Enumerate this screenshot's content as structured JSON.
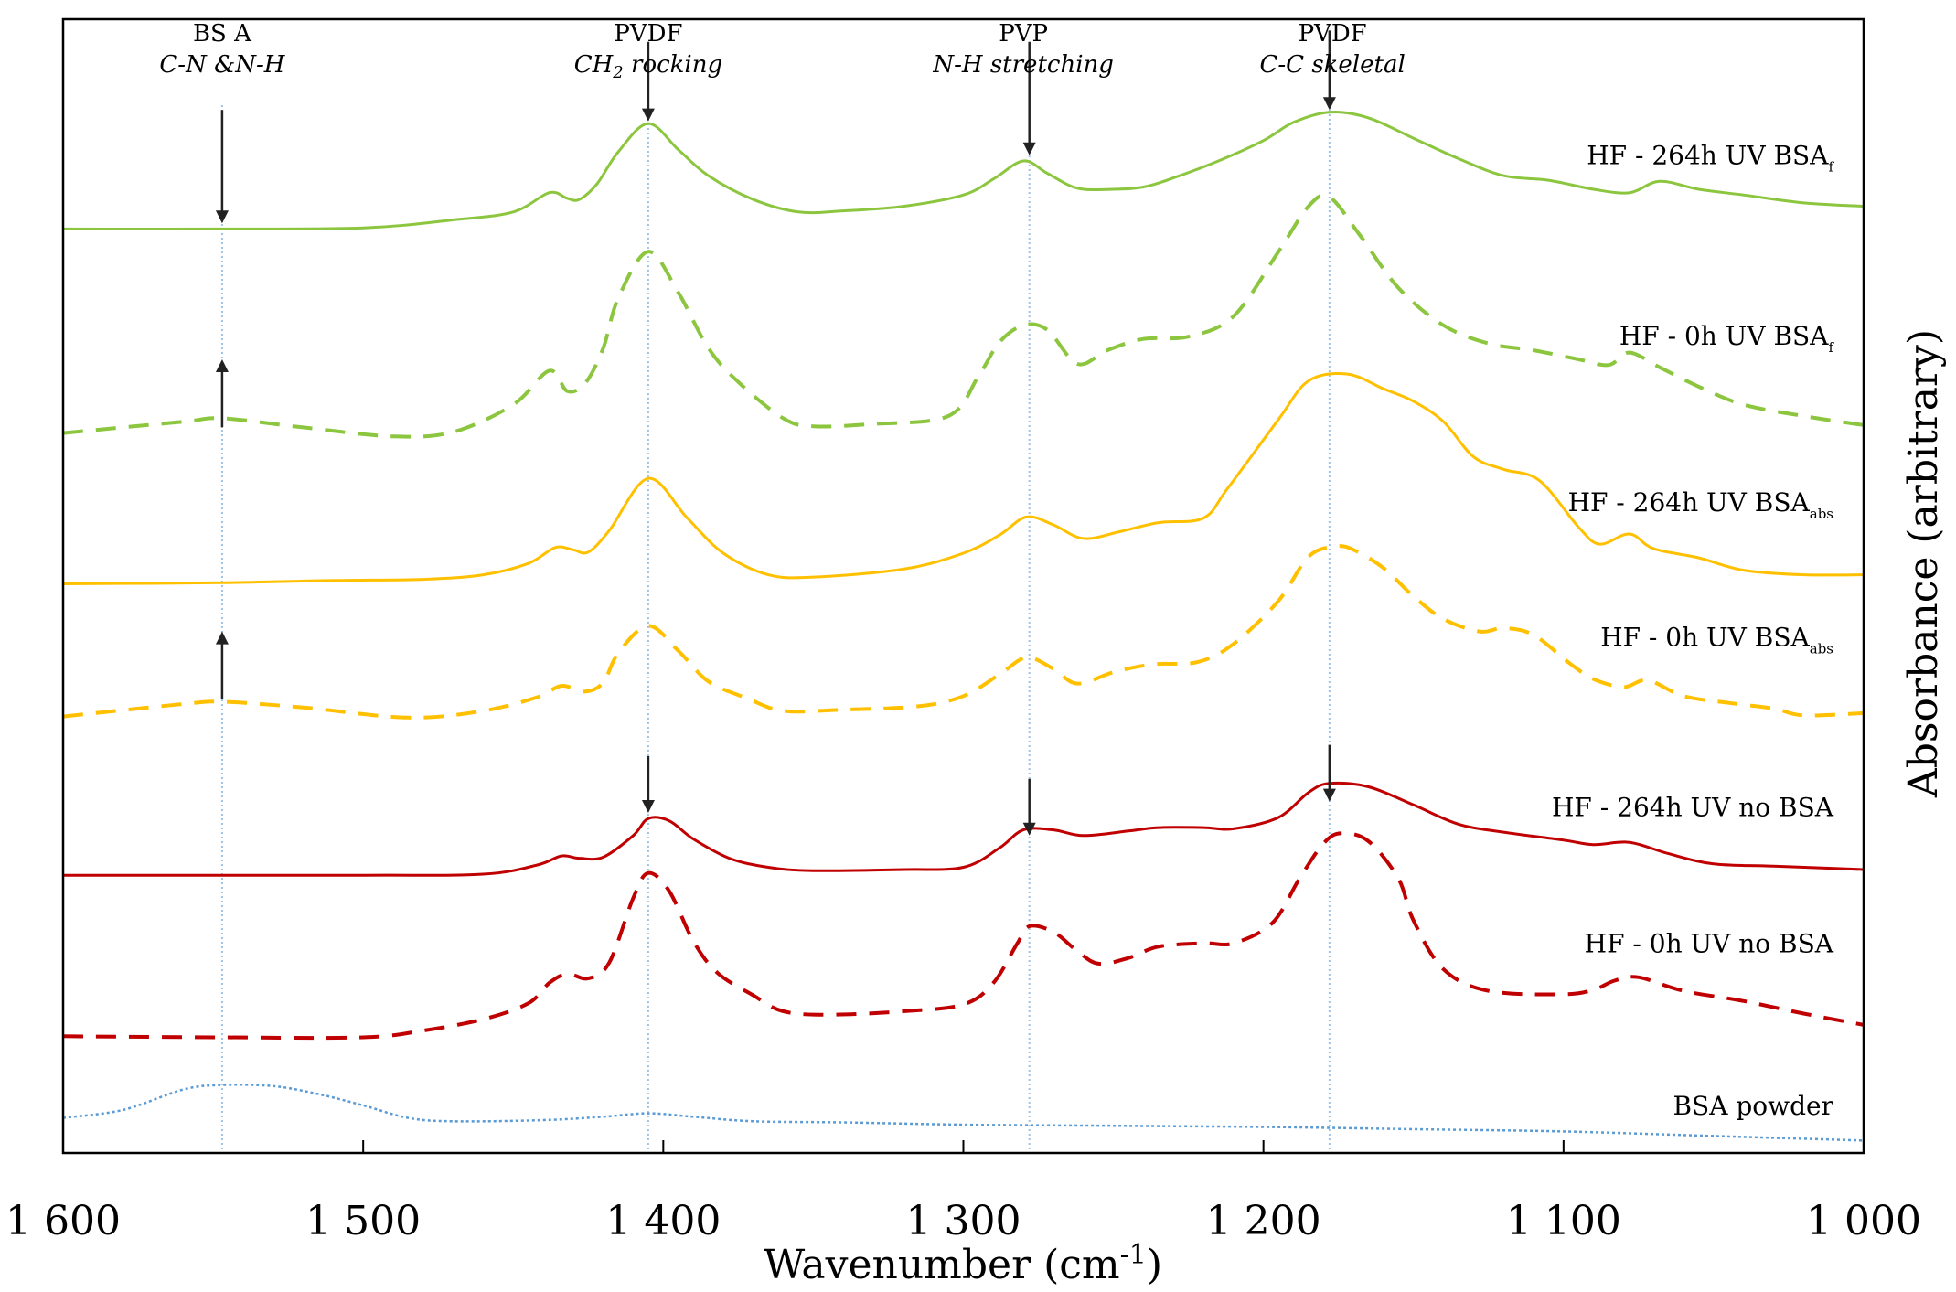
{
  "chart_data": {
    "type": "line",
    "title": "",
    "xlabel": "Wavenumber (cm",
    "xlabel_sup": "-1",
    "xlabel_close": ")",
    "ylabel": "Absorbance (arbitrary)",
    "xlim": [
      1600,
      1000
    ],
    "ylim": [
      0,
      100
    ],
    "x_reversed": true,
    "xticks": [
      {
        "value": 1600,
        "label": "1 600"
      },
      {
        "value": 1500,
        "label": "1 500"
      },
      {
        "value": 1400,
        "label": "1 400"
      },
      {
        "value": 1300,
        "label": "1 300"
      },
      {
        "value": 1200,
        "label": "1 200"
      },
      {
        "value": 1100,
        "label": "1 100"
      },
      {
        "value": 1000,
        "label": "1 000"
      }
    ],
    "reference_lines": [
      1547,
      1405,
      1278,
      1178
    ],
    "annotations": [
      {
        "x": 1547,
        "lines": [
          {
            "text": "BS A",
            "italic": false
          },
          {
            "text": "C-N &N-H",
            "italic": true
          }
        ]
      },
      {
        "x": 1405,
        "lines": [
          {
            "text": "PVDF",
            "italic": false
          },
          {
            "text": "CH",
            "sub": "2",
            "rest": " rocking",
            "italic": true
          }
        ]
      },
      {
        "x": 1280,
        "lines": [
          {
            "text": "PVP",
            "italic": false
          },
          {
            "text": "N-H stretching",
            "italic": true
          }
        ]
      },
      {
        "x": 1177,
        "lines": [
          {
            "text": "PVDF",
            "italic": false
          },
          {
            "text": "C-C skeletal",
            "italic": true
          }
        ]
      }
    ],
    "arrows": [
      {
        "x": 1547,
        "y_from": 92,
        "y_to": 82,
        "direction": "down"
      },
      {
        "x": 1405,
        "y_from": 98,
        "y_to": 91,
        "direction": "down"
      },
      {
        "x": 1278,
        "y_from": 98,
        "y_to": 88,
        "direction": "down"
      },
      {
        "x": 1178,
        "y_from": 99,
        "y_to": 92,
        "direction": "down"
      },
      {
        "x": 1547,
        "y_from": 64,
        "y_to": 70,
        "direction": "up"
      },
      {
        "x": 1547,
        "y_from": 40,
        "y_to": 46,
        "direction": "up"
      },
      {
        "x": 1405,
        "y_from": 35,
        "y_to": 30,
        "direction": "down"
      },
      {
        "x": 1278,
        "y_from": 33,
        "y_to": 28,
        "direction": "down"
      },
      {
        "x": 1178,
        "y_from": 36,
        "y_to": 31,
        "direction": "down"
      }
    ],
    "series": [
      {
        "name": "HF - 264h UV BSA",
        "sub": "f",
        "color": "#8CC63F",
        "dash": "solid",
        "x": [
          1600,
          1550,
          1500,
          1470,
          1450,
          1438,
          1432,
          1428,
          1422,
          1415,
          1405,
          1395,
          1385,
          1370,
          1355,
          1340,
          1320,
          1300,
          1290,
          1280,
          1272,
          1262,
          1250,
          1240,
          1230,
          1215,
          1200,
          1190,
          1178,
          1165,
          1150,
          1135,
          1120,
          1105,
          1090,
          1078,
          1068,
          1055,
          1040,
          1020,
          1000
        ],
        "y": [
          81.5,
          81.5,
          81.6,
          82.3,
          83,
          84.7,
          84.2,
          84.1,
          85.5,
          88.3,
          90.8,
          88.5,
          86.2,
          84.1,
          83,
          83.1,
          83.5,
          84.5,
          85.9,
          87.5,
          86.4,
          85.1,
          85,
          85.2,
          86,
          87.5,
          89.3,
          90.9,
          91.8,
          91.3,
          89.5,
          87.7,
          86.2,
          85.8,
          85,
          84.7,
          85.7,
          85,
          84.5,
          83.8,
          83.5
        ]
      },
      {
        "name": "HF - 0h UV BSA",
        "sub": "f",
        "color": "#8CC63F",
        "dash": "dashed",
        "x": [
          1600,
          1560,
          1547,
          1520,
          1490,
          1470,
          1450,
          1438,
          1432,
          1426,
          1420,
          1415,
          1405,
          1395,
          1385,
          1375,
          1360,
          1350,
          1330,
          1305,
          1295,
          1288,
          1280,
          1272,
          1262,
          1252,
          1240,
          1225,
          1210,
          1195,
          1185,
          1178,
          1168,
          1155,
          1140,
          1125,
          1110,
          1095,
          1085,
          1078,
          1068,
          1055,
          1040,
          1020,
          1000
        ],
        "y": [
          63.5,
          64.5,
          64.8,
          64,
          63.2,
          63.6,
          66,
          69,
          67.2,
          67.9,
          71,
          75.4,
          79.5,
          75.9,
          71,
          68,
          64.8,
          64.1,
          64.3,
          65,
          68.5,
          71.5,
          73,
          72.6,
          69.6,
          70.8,
          71.8,
          72,
          73.8,
          79.5,
          83.5,
          84.3,
          81,
          76.3,
          73,
          71.4,
          70.8,
          70,
          69.5,
          70.6,
          69.3,
          67.6,
          66,
          65,
          64.2
        ]
      },
      {
        "name": "HF - 264h UV BSA",
        "sub": "abs",
        "color": "#FFC000",
        "dash": "solid",
        "x": [
          1600,
          1547,
          1510,
          1480,
          1460,
          1445,
          1436,
          1430,
          1425,
          1418,
          1405,
          1392,
          1380,
          1365,
          1350,
          1320,
          1300,
          1288,
          1279,
          1270,
          1260,
          1248,
          1235,
          1220,
          1212,
          1195,
          1185,
          1172,
          1160,
          1150,
          1140,
          1130,
          1120,
          1108,
          1095,
          1088,
          1078,
          1070,
          1055,
          1040,
          1020,
          1000
        ],
        "y": [
          50.2,
          50.3,
          50.5,
          50.6,
          51,
          52,
          53.4,
          53.2,
          53,
          54.9,
          59.5,
          56,
          52.9,
          51,
          50.8,
          51.5,
          52.9,
          54.5,
          56.1,
          55.4,
          54.2,
          54.8,
          55.6,
          56,
          58.6,
          64.7,
          68.1,
          68.7,
          67.4,
          66.3,
          64.5,
          61.4,
          60.3,
          59.3,
          55.2,
          53.7,
          54.6,
          53.3,
          52.5,
          51.4,
          51,
          51
        ]
      },
      {
        "name": "HF - 0h UV BSA",
        "sub": "abs",
        "color": "#FFC000",
        "dash": "dashed",
        "x": [
          1600,
          1560,
          1547,
          1520,
          1485,
          1460,
          1442,
          1434,
          1426,
          1420,
          1415,
          1405,
          1395,
          1385,
          1372,
          1360,
          1340,
          1315,
          1300,
          1288,
          1279,
          1270,
          1262,
          1250,
          1237,
          1222,
          1210,
          1195,
          1185,
          1176,
          1170,
          1160,
          1150,
          1140,
          1128,
          1120,
          1110,
          1098,
          1090,
          1080,
          1072,
          1060,
          1045,
          1030,
          1020,
          1000
        ],
        "y": [
          38.5,
          39.6,
          39.8,
          39.3,
          38.4,
          39,
          40.2,
          41.2,
          40.7,
          41.5,
          44.1,
          46.5,
          44.3,
          41.6,
          40.1,
          39,
          39.1,
          39.4,
          40.3,
          42.2,
          43.7,
          42.7,
          41.4,
          42.4,
          43.1,
          43.3,
          44.9,
          48.7,
          52.6,
          53.5,
          53.2,
          51.6,
          49.1,
          47.1,
          46,
          46.3,
          45.7,
          43.2,
          41.8,
          41.1,
          41.7,
          40.3,
          39.7,
          39.2,
          38.6,
          38.8
        ]
      },
      {
        "name": "HF - 264h UV no BSA",
        "sub": "",
        "color": "#C00000",
        "dash": "solid",
        "x": [
          1600,
          1500,
          1460,
          1442,
          1434,
          1428,
          1420,
          1410,
          1405,
          1398,
          1390,
          1378,
          1365,
          1350,
          1320,
          1300,
          1288,
          1280,
          1270,
          1260,
          1245,
          1235,
          1220,
          1210,
          1195,
          1185,
          1178,
          1165,
          1150,
          1135,
          1120,
          1100,
          1090,
          1078,
          1065,
          1050,
          1030,
          1000
        ],
        "y": [
          24.5,
          24.5,
          24.6,
          25.4,
          26.2,
          26,
          26.1,
          28,
          29.5,
          29.3,
          27.7,
          26,
          25.2,
          24.9,
          25,
          25.2,
          26.9,
          28.5,
          28.5,
          28,
          28.4,
          28.7,
          28.7,
          28.6,
          29.6,
          31.8,
          32.6,
          32.3,
          30.7,
          29,
          28.3,
          27.6,
          27.2,
          27.4,
          26.4,
          25.5,
          25.3,
          25
        ]
      },
      {
        "name": "HF - 0h UV no BSA",
        "sub": "",
        "color": "#C00000",
        "dash": "dashed",
        "x": [
          1600,
          1547,
          1500,
          1480,
          1460,
          1445,
          1438,
          1432,
          1425,
          1418,
          1410,
          1405,
          1398,
          1390,
          1382,
          1370,
          1360,
          1345,
          1320,
          1300,
          1290,
          1282,
          1278,
          1270,
          1262,
          1255,
          1245,
          1235,
          1220,
          1210,
          1197,
          1188,
          1180,
          1174,
          1165,
          1155,
          1150,
          1140,
          1125,
          1100,
          1090,
          1083,
          1075,
          1060,
          1040,
          1020,
          1000
        ],
        "y": [
          10.3,
          10.2,
          10.2,
          10.8,
          11.8,
          13.2,
          15,
          15.8,
          15.4,
          16.8,
          22.5,
          24.7,
          23.1,
          18.7,
          15.9,
          13.9,
          12.5,
          12.2,
          12.5,
          13.1,
          15,
          18.5,
          20,
          19.5,
          17.8,
          16.7,
          17.2,
          18.2,
          18.5,
          18.5,
          20.3,
          24.2,
          27.3,
          28.2,
          27.5,
          24.2,
          20.5,
          16.2,
          14.3,
          14,
          14.4,
          15.2,
          15.5,
          14.3,
          13.4,
          12.3,
          11.3
        ]
      },
      {
        "name": "BSA powder",
        "sub": "",
        "color": "#5B9BD5",
        "dash": "dotted",
        "x": [
          1600,
          1580,
          1560,
          1547,
          1530,
          1515,
          1500,
          1485,
          1470,
          1440,
          1420,
          1405,
          1390,
          1370,
          1340,
          1300,
          1250,
          1200,
          1150,
          1100,
          1050,
          1000
        ],
        "y": [
          3.1,
          3.8,
          5.6,
          6,
          5.9,
          5.2,
          4.2,
          3.1,
          2.8,
          2.9,
          3.2,
          3.5,
          3.2,
          2.8,
          2.7,
          2.5,
          2.4,
          2.3,
          2.1,
          1.9,
          1.5,
          1.1
        ]
      }
    ],
    "series_labels": [
      {
        "series": 0,
        "text": "HF - 264h UV BSA",
        "sub": "f",
        "y": 87.2
      },
      {
        "series": 1,
        "text": "HF - 0h UV BSA",
        "sub": "f",
        "y": 71.3
      },
      {
        "series": 2,
        "text": "HF - 264h UV BSA",
        "sub": "abs",
        "y": 56.6
      },
      {
        "series": 3,
        "text": "HF - 0h UV BSA",
        "sub": "abs",
        "y": 44.7
      },
      {
        "series": 4,
        "text": "HF - 264h UV no BSA",
        "sub": "",
        "y": 29.7
      },
      {
        "series": 5,
        "text": "HF - 0h UV no BSA",
        "sub": "",
        "y": 17.7
      },
      {
        "series": 6,
        "text": "BSA powder",
        "sub": "",
        "y": 3.4
      }
    ]
  }
}
